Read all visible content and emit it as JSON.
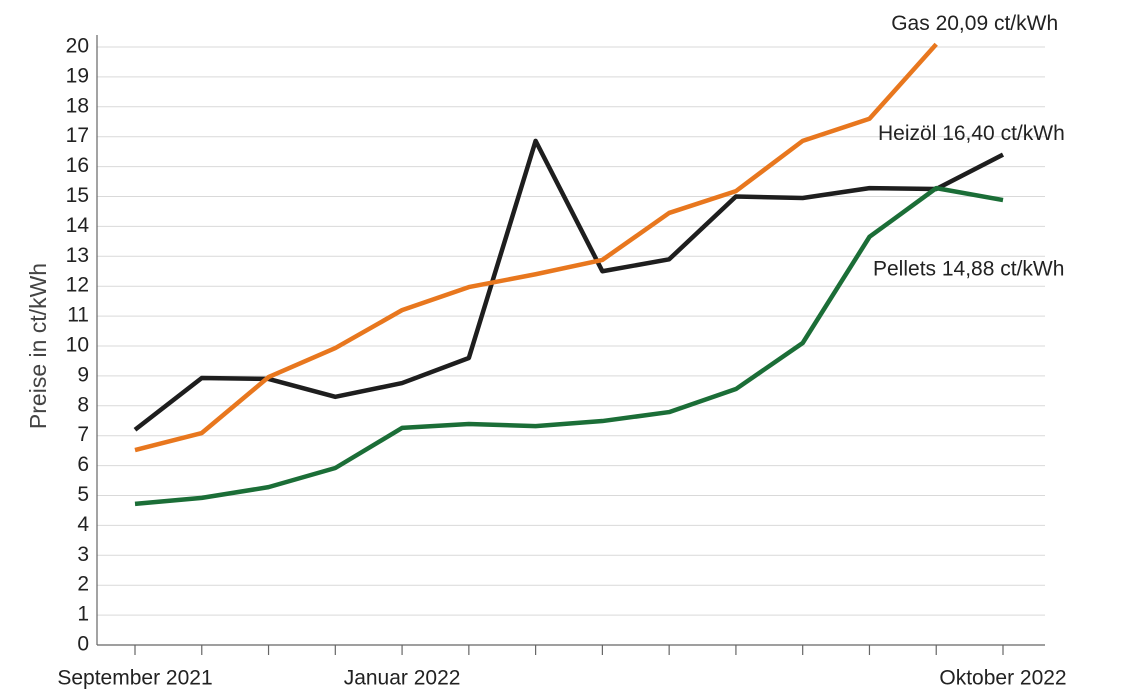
{
  "chart_data": {
    "type": "line",
    "y_label": "Preise in ct/kWh",
    "categories": [
      "September 2021",
      null,
      null,
      null,
      "Januar 2022",
      null,
      null,
      null,
      null,
      null,
      null,
      null,
      null,
      "Oktober 2022"
    ],
    "series": [
      {
        "name": "Heizöl",
        "color": "#1e1e1e",
        "values": [
          7.2,
          8.93,
          8.9,
          8.3,
          8.76,
          9.6,
          16.86,
          12.5,
          12.9,
          15.0,
          14.95,
          15.28,
          15.25,
          16.4
        ]
      },
      {
        "name": "Gas",
        "color": "#e8771e",
        "values": [
          6.52,
          7.09,
          8.96,
          9.93,
          11.2,
          11.97,
          12.4,
          12.88,
          14.45,
          15.18,
          16.86,
          17.6,
          20.09,
          null
        ]
      },
      {
        "name": "Pellets",
        "color": "#1b6e37",
        "values": [
          4.72,
          4.92,
          5.28,
          5.92,
          7.26,
          7.39,
          7.32,
          7.49,
          7.79,
          8.56,
          10.1,
          13.65,
          15.28,
          14.88
        ]
      }
    ],
    "annotations": [
      {
        "text": "Gas 20,09 ct/kWh",
        "series": 1,
        "point": 12
      },
      {
        "text": "Heizöl 16,40 ct/kWh",
        "series": 0,
        "point": 13
      },
      {
        "text": "Pellets 14,88 ct/kWh",
        "series": 2,
        "point": 13
      }
    ],
    "ylim": [
      0,
      20
    ],
    "yticks": [
      0,
      1,
      2,
      3,
      4,
      5,
      6,
      7,
      8,
      9,
      10,
      11,
      12,
      13,
      14,
      15,
      16,
      17,
      18,
      19,
      20
    ],
    "grid": true
  }
}
